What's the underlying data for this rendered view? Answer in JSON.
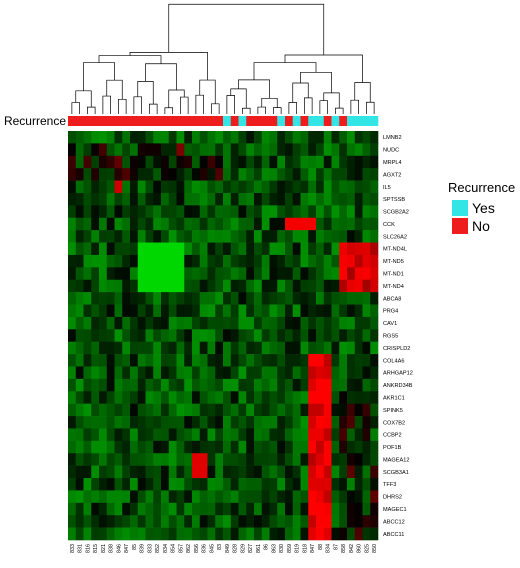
{
  "chart_data": {
    "type": "heatmap",
    "row_labels": [
      "LMNB2",
      "NUDC",
      "MRPL4",
      "AGXT2",
      "IL5",
      "SPTSSB",
      "SCGB2A2",
      "CCK",
      "SLC26A2",
      "MT-ND4L",
      "MT-ND5",
      "MT-ND1",
      "MT-ND4",
      "ABCA8",
      "PRG4",
      "CAV1",
      "RGS5",
      "CRISPLD2",
      "COL4A6",
      "ARHGAP12",
      "ANKRD34B",
      "AKR1C1",
      "SPINK5",
      "COX7B2",
      "CCBP2",
      "POF1B",
      "MAGEA12",
      "SCGB3A1",
      "TFF3",
      "DHRS2",
      "MAGEC1",
      "ABCC12",
      "ABCC11"
    ],
    "column_labels": [
      "833",
      "831",
      "816",
      "815",
      "821",
      "838",
      "846",
      "847",
      "85",
      "839",
      "833",
      "852",
      "834",
      "854",
      "857",
      "862",
      "856",
      "836",
      "845",
      "83",
      "849",
      "828",
      "829",
      "827",
      "861",
      "86",
      "863",
      "830",
      "859",
      "819",
      "818",
      "847",
      "88",
      "834",
      "87",
      "858",
      "842",
      "860",
      "825",
      "850"
    ],
    "recurrence": [
      "No",
      "No",
      "No",
      "No",
      "No",
      "No",
      "No",
      "No",
      "No",
      "No",
      "No",
      "No",
      "No",
      "No",
      "No",
      "No",
      "No",
      "No",
      "No",
      "No",
      "Yes",
      "No",
      "Yes",
      "No",
      "No",
      "No",
      "No",
      "Yes",
      "No",
      "Yes",
      "No",
      "Yes",
      "Yes",
      "No",
      "Yes",
      "No",
      "Yes",
      "Yes",
      "Yes",
      "Yes"
    ],
    "annotation_label": "Recurrence",
    "legend": {
      "title": "Recurrence",
      "entries": [
        {
          "label": "Yes",
          "color": "#33e6e6"
        },
        {
          "label": "No",
          "color": "#ee1c1c"
        }
      ],
      "placement": "right"
    },
    "color_scale": {
      "low": "#00c800",
      "mid": "#000000",
      "high": "#ff0000"
    },
    "value_range": [
      -3,
      3
    ]
  }
}
